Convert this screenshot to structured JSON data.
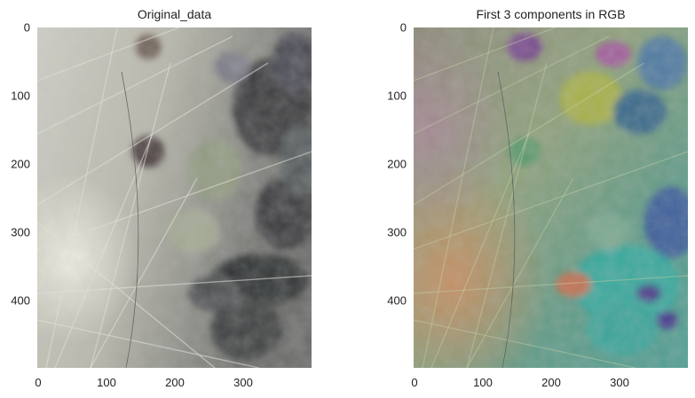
{
  "panels": [
    {
      "title": "Original_data",
      "yticks": [
        "0",
        "100",
        "200",
        "300",
        "400"
      ],
      "xticks": [
        "0",
        "100",
        "200",
        "300"
      ]
    },
    {
      "title": "First 3 components in RGB",
      "yticks": [
        "0",
        "100",
        "200",
        "300",
        "400"
      ],
      "xticks": [
        "0",
        "100",
        "200",
        "300"
      ]
    }
  ]
}
